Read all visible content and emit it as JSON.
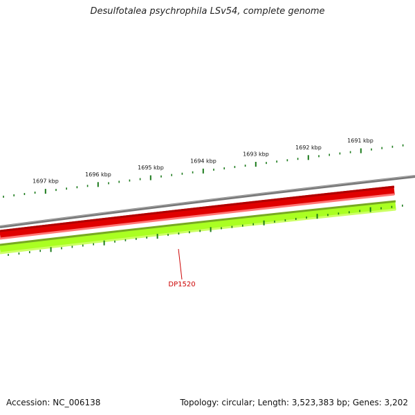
{
  "title": "Desulfotalea psychrophila LSv54, complete genome",
  "footer": {
    "accession": "Accession: NC_006138",
    "stats": "Topology: circular; Length: 3,523,383 bp; Genes: 3,202"
  },
  "ticks": {
    "labels": [
      "1697 kbp",
      "1696 kbp",
      "1695 kbp",
      "1694 kbp",
      "1693 kbp",
      "1692 kbp",
      "1691 kbp"
    ]
  },
  "gene": {
    "label": "DP1520"
  },
  "colors": {
    "backbone": "#808080",
    "forward_strand": "#e00000",
    "reverse_strand": "#aaff22",
    "tick": "#1a7a1a",
    "gene_label": "#cc0000"
  }
}
